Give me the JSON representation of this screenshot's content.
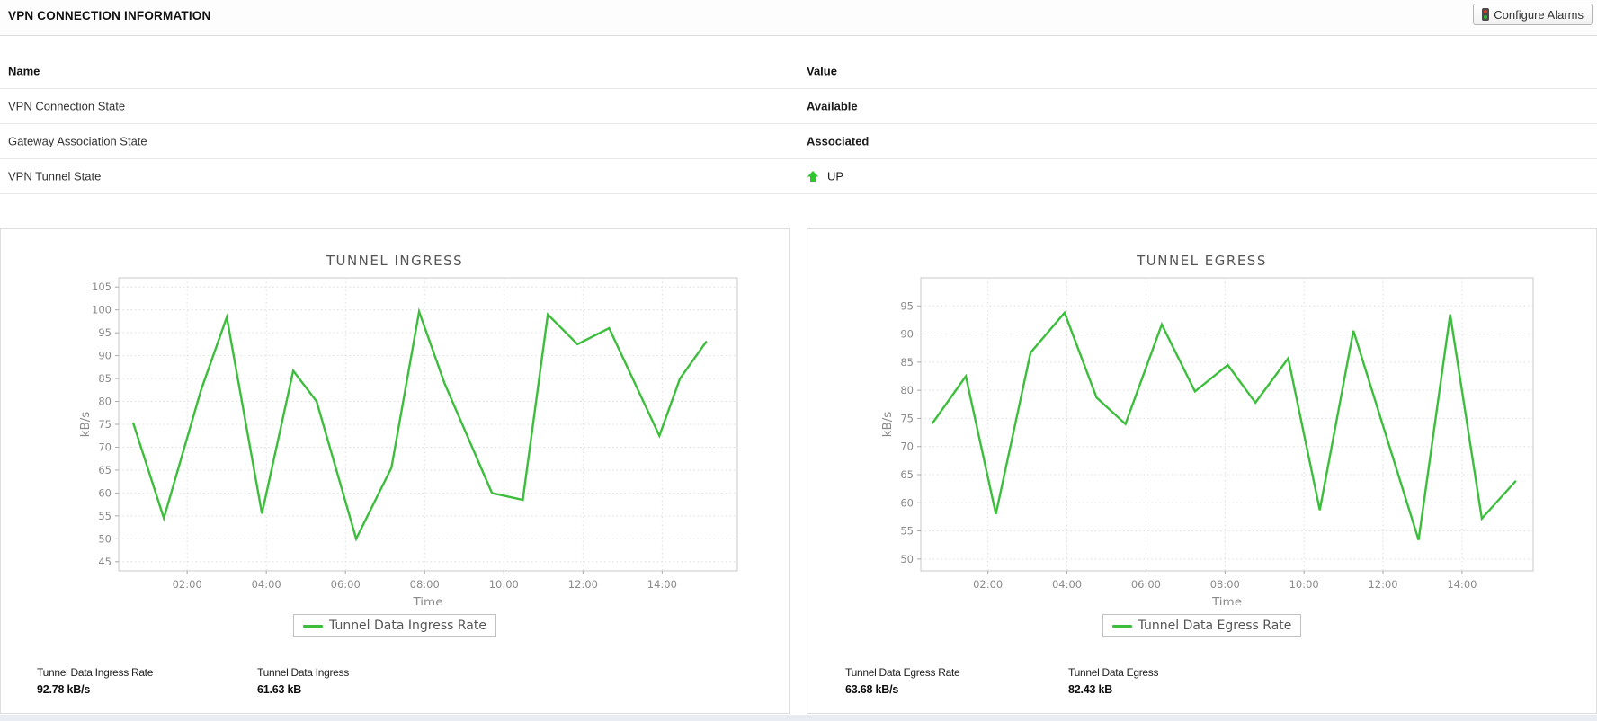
{
  "header": {
    "title": "VPN CONNECTION INFORMATION",
    "configure_alarms_label": "Configure Alarms",
    "alarm_icon_colors": {
      "red": "#d93a2b",
      "green": "#2fb52f"
    }
  },
  "table": {
    "columns": [
      "Name",
      "Value"
    ],
    "rows": [
      {
        "name": "VPN Connection State",
        "value": "Available"
      },
      {
        "name": "Gateway Association State",
        "value": "Associated"
      },
      {
        "name": "VPN Tunnel State",
        "value": "UP",
        "icon": "up-arrow-icon",
        "icon_color": "#2fc52f"
      }
    ]
  },
  "chart_data": [
    {
      "type": "line",
      "title": "TUNNEL INGRESS",
      "legend": "Tunnel Data Ingress Rate",
      "legend_position": "bottom",
      "xlabel": "Time",
      "ylabel": "kB/s",
      "line_color": "#3cbe3c",
      "grid": true,
      "xlim": [
        0.27,
        15.9
      ],
      "ylim": [
        43,
        107
      ],
      "yticks": [
        45,
        50,
        55,
        60,
        65,
        70,
        75,
        80,
        85,
        90,
        95,
        100,
        105
      ],
      "xtick_values": [
        2,
        4,
        6,
        8,
        10,
        12,
        14
      ],
      "xtick_labels": [
        "02:00",
        "04:00",
        "06:00",
        "08:00",
        "10:00",
        "12:00",
        "14:00"
      ],
      "x": [
        0.64,
        1.41,
        2.35,
        3.0,
        3.89,
        4.68,
        5.27,
        6.27,
        7.16,
        7.86,
        8.5,
        9.7,
        10.48,
        11.11,
        11.86,
        12.66,
        13.93,
        14.45,
        15.11
      ],
      "values": [
        75.2,
        54.5,
        82.5,
        98.4,
        55.5,
        86.7,
        80.0,
        50.0,
        65.5,
        99.6,
        84.0,
        60.0,
        58.5,
        99.0,
        92.5,
        96.0,
        72.5,
        85.0,
        93.0
      ],
      "stats": [
        {
          "label": "Tunnel Data Ingress Rate",
          "value": "92.78 kB/s"
        },
        {
          "label": "Tunnel Data Ingress",
          "value": "61.63 kB"
        }
      ]
    },
    {
      "type": "line",
      "title": "TUNNEL EGRESS",
      "legend": "Tunnel Data Egress Rate",
      "legend_position": "bottom",
      "xlabel": "Time",
      "ylabel": "kB/s",
      "line_color": "#3cbe3c",
      "grid": true,
      "xlim": [
        0.3,
        15.8
      ],
      "ylim": [
        47.9,
        100
      ],
      "yticks": [
        50,
        55,
        60,
        65,
        70,
        75,
        80,
        85,
        90,
        95
      ],
      "xtick_values": [
        2,
        4,
        6,
        8,
        10,
        12,
        14
      ],
      "xtick_labels": [
        "02:00",
        "04:00",
        "06:00",
        "08:00",
        "10:00",
        "12:00",
        "14:00"
      ],
      "x": [
        0.6,
        1.44,
        2.2,
        3.08,
        3.94,
        4.75,
        5.48,
        6.4,
        7.24,
        8.07,
        8.77,
        9.6,
        10.4,
        11.25,
        12.9,
        13.7,
        14.5,
        15.35
      ],
      "values": [
        74.2,
        82.5,
        58.0,
        86.7,
        93.8,
        78.7,
        74.0,
        91.7,
        79.8,
        84.5,
        77.8,
        85.7,
        58.7,
        90.6,
        53.4,
        93.5,
        57.2,
        63.8
      ],
      "stats": [
        {
          "label": "Tunnel Data Egress Rate",
          "value": "63.68 kB/s"
        },
        {
          "label": "Tunnel Data Egress",
          "value": "82.43 kB"
        }
      ]
    }
  ]
}
